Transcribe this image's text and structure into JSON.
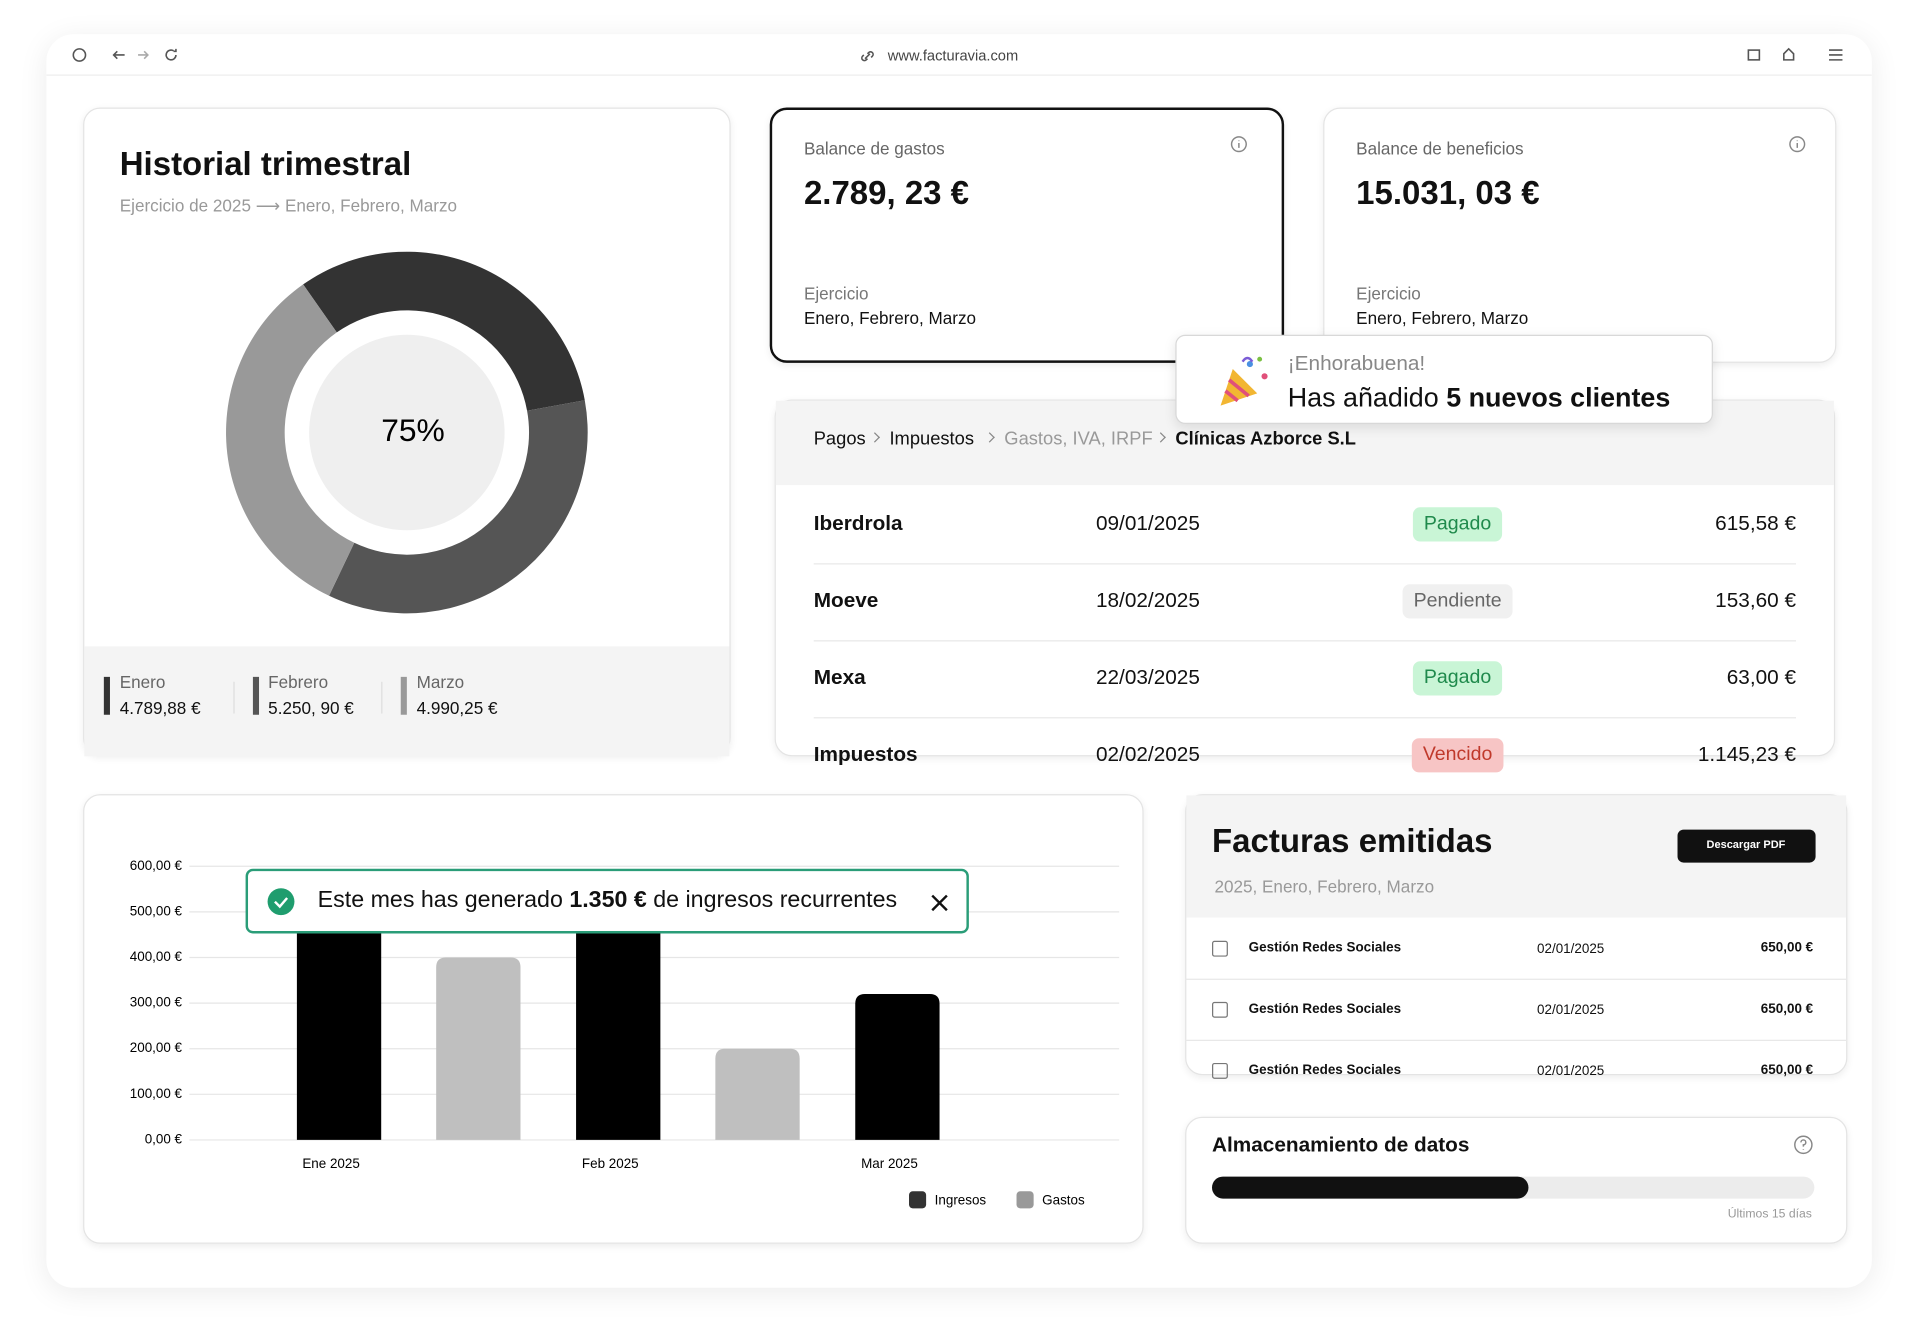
{
  "browser": {
    "url": "www.facturavia.com"
  },
  "chart_data": [
    {
      "type": "donut",
      "title": "Historial trimestral",
      "subtitle": "Ejercicio de 2025 ⟶ Enero, Febrero, Marzo",
      "center_label": "75%",
      "categories": [
        "Enero",
        "Febrero",
        "Marzo"
      ],
      "values": [
        4789.88,
        5250.9,
        4990.25
      ],
      "value_labels": [
        "4.789,88 €",
        "5.250, 90 €",
        "4.990,25 €"
      ],
      "colors": [
        "#333333",
        "#555555",
        "#999999"
      ]
    },
    {
      "type": "bar",
      "categories": [
        "Ene 2025",
        "Feb 2025",
        "Mar 2025"
      ],
      "series": [
        {
          "name": "Ingresos",
          "color": "#000000",
          "values": [
            560,
            560,
            320
          ]
        },
        {
          "name": "Gastos",
          "color": "#bfbfbf",
          "values": [
            400,
            200,
            null
          ]
        }
      ],
      "ylim": [
        0,
        600
      ],
      "yticks": [
        {
          "value": 0,
          "label": "0,00 €"
        },
        {
          "value": 100,
          "label": "100,00 €"
        },
        {
          "value": 200,
          "label": "200,00 €"
        },
        {
          "value": 300,
          "label": "300,00 €"
        },
        {
          "value": 400,
          "label": "400,00 €"
        },
        {
          "value": 500,
          "label": "500,00 €"
        },
        {
          "value": 600,
          "label": "600,00 €"
        }
      ],
      "grid": true,
      "legend": "bottom-right"
    }
  ],
  "balances": [
    {
      "title": "Balance de gastos",
      "value": "2.789, 23 €",
      "period_label": "Ejercicio",
      "period": "Enero, Febrero, Marzo"
    },
    {
      "title": "Balance de beneficios",
      "value": "15.031, 03 €",
      "period_label": "Ejercicio",
      "period": "Enero, Febrero, Marzo"
    }
  ],
  "toasts": [
    {
      "title": "¡Enhorabuena!",
      "text": "Has añadido",
      "highlight": "5 nuevos clientes"
    },
    {
      "text": "Este mes has generado",
      "highlight": "1.350 €",
      "suffix": "de ingresos recurrentes"
    }
  ],
  "payments": {
    "breadcrumb": [
      "Pagos",
      "Impuestos",
      "Gastos, IVA, IRPF",
      "Clínicas Azborce S.L"
    ],
    "rows": [
      [
        "Iberdrola",
        "09/01/2025",
        "Pagado",
        "615,58 €"
      ],
      [
        "Moeve",
        "18/02/2025",
        "Pendiente",
        "153,60 €"
      ],
      [
        "Mexa",
        "22/03/2025",
        "Pagado",
        "63,00 €"
      ],
      [
        "Impuestos",
        "02/02/2025",
        "Vencido",
        "1.145,23 €"
      ]
    ]
  },
  "invoices": {
    "title": "Facturas emitidas",
    "subtitle": "2025, Enero, Febrero, Marzo",
    "button": "Descargar PDF",
    "rows": [
      [
        "Gestión Redes Sociales",
        "02/01/2025",
        "650,00 €"
      ],
      [
        "Gestión Redes Sociales",
        "02/01/2025",
        "650,00 €"
      ],
      [
        "Gestión Redes Sociales",
        "02/01/2025",
        "650,00 €"
      ]
    ]
  },
  "storage": {
    "title": "Almacenamiento de datos",
    "used_percent": 52.5,
    "caption": "Últimos 15 días"
  }
}
